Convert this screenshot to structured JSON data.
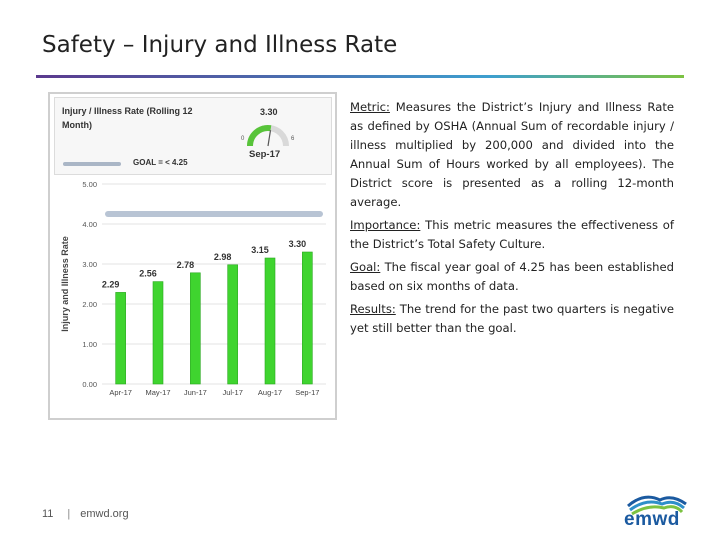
{
  "slide": {
    "title": "Safety – Injury and Illness Rate",
    "footer_page": "11",
    "footer_sep": "|",
    "footer_site": "emwd.org",
    "logo_text": "emwd"
  },
  "panel": {
    "title": "Injury / Illness Rate (Rolling 12 Month)",
    "current_value": "3.30",
    "current_month": "Sep-17",
    "gauge_min": "0",
    "gauge_max": "6",
    "gauge_level": 3.3,
    "goal_label": "GOAL = < 4.25"
  },
  "chart_data": {
    "type": "bar",
    "ylabel": "Injury and Illness Rate",
    "xlabel": "",
    "categories": [
      "Apr-17",
      "May-17",
      "Jun-17",
      "Jul-17",
      "Aug-17",
      "Sep-17"
    ],
    "values": [
      2.29,
      2.56,
      2.78,
      2.98,
      3.15,
      3.3
    ],
    "value_labels": [
      "2.29",
      "2.56",
      "2.78",
      "2.98",
      "3.15",
      "3.30"
    ],
    "ylim": [
      0,
      5
    ],
    "yticks": [
      "0.00",
      "1.00",
      "2.00",
      "3.00",
      "4.00",
      "5.00"
    ],
    "goal": 4.25,
    "grid": true,
    "colors": {
      "bar": "#3fd42f",
      "bar_dark": "#2aa81f",
      "goal": "#b8c4d4"
    }
  },
  "text": {
    "metric_label": "Metric:",
    "metric_body": "  Measures the District’s Injury and Illness Rate as defined by OSHA (Annual Sum of recordable injury / illness multiplied by 200,000 and divided into the Annual Sum of Hours worked by all employees).  The District score is presented as a rolling 12-month average.",
    "importance_label": "Importance:",
    "importance_body": "  This metric measures the effectiveness of the District’s Total Safety Culture.",
    "goal_label": "Goal:",
    "goal_body": "  The fiscal year goal of 4.25 has been established based on six months of data.",
    "results_label": "Results:",
    "results_body": "  The trend for the past two quarters is negative yet still better than the goal."
  },
  "icons": {
    "gauge": "gauge-icon",
    "logo": "emwd-mountain-logo"
  }
}
